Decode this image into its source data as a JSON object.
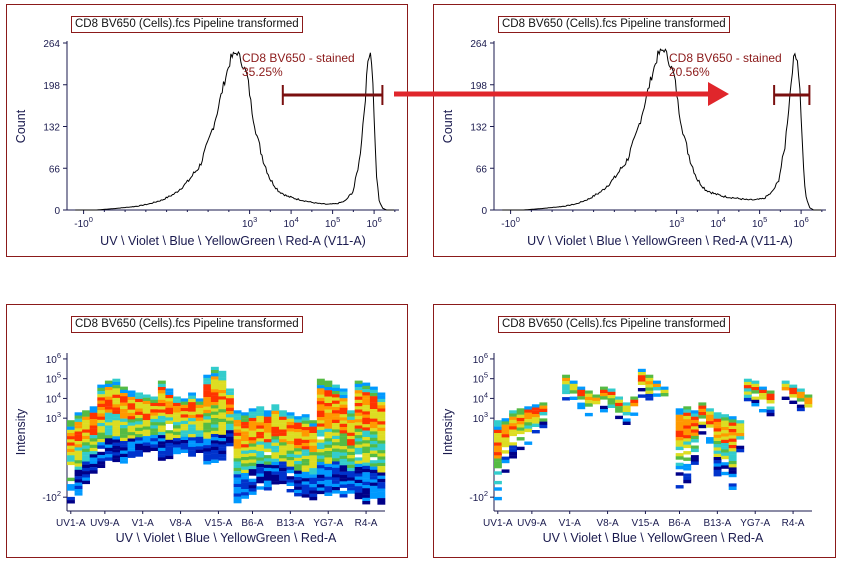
{
  "colors": {
    "frame": "#8b1a1a",
    "gate": "#7a0f0f",
    "arrow": "#e0262b",
    "axis_text": "#1a1a4e",
    "heat": [
      "#000088",
      "#0033cc",
      "#0099ff",
      "#33cccc",
      "#55bb44",
      "#dddd22",
      "#ff9900",
      "#ff3300"
    ]
  },
  "chart_data": [
    {
      "type": "histogram",
      "title": "CD8 BV650 (Cells).fcs Pipeline transformed",
      "xlabel": "UV \\ Violet \\ Blue \\ YellowGreen \\ Red-A (V11-A)",
      "ylabel": "Count",
      "yticks": [
        "0",
        "66",
        "132",
        "198",
        "264"
      ],
      "ylim": [
        0,
        264
      ],
      "xticks": [
        {
          "base": "-10",
          "exp": "0"
        },
        {
          "base": "10",
          "exp": "3"
        },
        {
          "base": "10",
          "exp": "4"
        },
        {
          "base": "10",
          "exp": "5"
        },
        {
          "base": "10",
          "exp": "6"
        }
      ],
      "gate": {
        "name": "CD8 BV650 - stained",
        "pct": "35.25%",
        "from": 3.8,
        "to": 6.2
      },
      "x": [
        -1.2,
        -0.7,
        -0.3,
        0.0,
        0.3,
        0.6,
        0.9,
        1.2,
        1.5,
        1.8,
        2.0,
        2.2,
        2.4,
        2.55,
        2.7,
        2.85,
        2.95,
        3.05,
        3.2,
        3.35,
        3.5,
        3.7,
        3.9,
        4.1,
        4.3,
        4.5,
        4.7,
        4.9,
        5.1,
        5.3,
        5.5,
        5.65,
        5.78,
        5.85,
        5.9,
        5.95,
        6.0,
        6.05,
        6.12,
        6.2,
        6.3,
        6.5
      ],
      "y": [
        0,
        0,
        2,
        4,
        6,
        10,
        16,
        26,
        44,
        70,
        105,
        150,
        205,
        240,
        250,
        228,
        210,
        160,
        110,
        75,
        48,
        30,
        22,
        18,
        15,
        12,
        10,
        9,
        10,
        14,
        30,
        80,
        170,
        235,
        255,
        230,
        150,
        60,
        15,
        3,
        0,
        0
      ]
    },
    {
      "type": "histogram",
      "title": "CD8 BV650 (Cells).fcs Pipeline transformed",
      "xlabel": "UV \\ Violet \\ Blue \\ YellowGreen \\ Red-A (V11-A)",
      "ylabel": "Count",
      "yticks": [
        "0",
        "66",
        "132",
        "198",
        "264"
      ],
      "ylim": [
        0,
        264
      ],
      "xticks": [
        {
          "base": "-10",
          "exp": "0"
        },
        {
          "base": "10",
          "exp": "3"
        },
        {
          "base": "10",
          "exp": "4"
        },
        {
          "base": "10",
          "exp": "5"
        },
        {
          "base": "10",
          "exp": "6"
        }
      ],
      "gate": {
        "name": "CD8 BV650 - stained",
        "pct": "20.56%",
        "from": 5.35,
        "to": 6.2
      },
      "x": [
        -1.2,
        -0.7,
        -0.3,
        0.0,
        0.3,
        0.6,
        0.9,
        1.2,
        1.5,
        1.8,
        2.0,
        2.2,
        2.4,
        2.55,
        2.7,
        2.85,
        2.95,
        3.05,
        3.2,
        3.35,
        3.5,
        3.7,
        3.9,
        4.1,
        4.3,
        4.5,
        4.7,
        4.9,
        5.1,
        5.3,
        5.45,
        5.6,
        5.72,
        5.8,
        5.86,
        5.92,
        5.98,
        6.04,
        6.1,
        6.2,
        6.3,
        6.5
      ],
      "y": [
        0,
        0,
        2,
        4,
        6,
        10,
        18,
        30,
        50,
        78,
        112,
        160,
        212,
        245,
        255,
        230,
        210,
        160,
        110,
        75,
        48,
        32,
        26,
        22,
        20,
        18,
        16,
        16,
        18,
        28,
        45,
        95,
        175,
        230,
        250,
        235,
        180,
        90,
        25,
        4,
        0,
        0
      ]
    },
    {
      "type": "heatmap",
      "title": "CD8 BV650 (Cells).fcs Pipeline transformed",
      "xlabel": "UV \\ Violet \\ Blue \\ YellowGreen \\ Red-A",
      "ylabel": "Intensity",
      "yticks": [
        {
          "base": "-10",
          "exp": "2"
        },
        {
          "base": "10",
          "exp": "3"
        },
        {
          "base": "10",
          "exp": "4"
        },
        {
          "base": "10",
          "exp": "5"
        },
        {
          "base": "10",
          "exp": "6"
        }
      ],
      "categories": [
        "UV1-A",
        "UV9-A",
        "V1-A",
        "V8-A",
        "V15-A",
        "B6-A",
        "B13-A",
        "YG7-A",
        "R4-A"
      ],
      "channels": [
        {
          "c": 0,
          "top": 2.9,
          "bot": -1.5,
          "dens": 0.25
        },
        {
          "c": 1,
          "top": 3.3,
          "bot": -0.8,
          "dens": 0.9
        },
        {
          "c": 2,
          "top": 3.4,
          "bot": -0.3,
          "dens": 0.9
        },
        {
          "c": 3,
          "top": 3.6,
          "bot": 0.2,
          "dens": 0.9
        },
        {
          "c": 4,
          "top": 4.7,
          "bot": 0.6,
          "dens": 0.9
        },
        {
          "c": 5,
          "top": 4.9,
          "bot": 0.9,
          "dens": 0.9
        },
        {
          "c": 6,
          "top": 5.0,
          "bot": 0.9,
          "dens": 0.9
        },
        {
          "c": 7,
          "top": 4.6,
          "bot": 0.8,
          "dens": 0.9
        },
        {
          "c": 8,
          "top": 4.4,
          "bot": 1.0,
          "dens": 0.9
        },
        {
          "c": 9,
          "top": 4.3,
          "bot": 1.2,
          "dens": 0.9
        },
        {
          "c": 10,
          "top": 4.2,
          "bot": 1.3,
          "dens": 0.9
        },
        {
          "c": 11,
          "top": 4.1,
          "bot": 1.4,
          "dens": 0.9
        },
        {
          "c": 12,
          "top": 4.9,
          "bot": 1.0,
          "dens": 0.9
        },
        {
          "c": 13,
          "top": 4.5,
          "bot": 1.0,
          "dens": 0.9
        },
        {
          "c": 14,
          "top": 4.1,
          "bot": 1.2,
          "dens": 0.9
        },
        {
          "c": 15,
          "top": 4.0,
          "bot": 1.4,
          "dens": 0.9
        },
        {
          "c": 16,
          "top": 4.3,
          "bot": 1.2,
          "dens": 0.9
        },
        {
          "c": 17,
          "top": 4.0,
          "bot": 1.4,
          "dens": 0.9
        },
        {
          "c": 18,
          "top": 5.2,
          "bot": 0.7,
          "dens": 0.9
        },
        {
          "c": 19,
          "top": 5.6,
          "bot": 0.8,
          "dens": 0.9
        },
        {
          "c": 20,
          "top": 5.4,
          "bot": 1.0,
          "dens": 0.9
        },
        {
          "c": 21,
          "top": 4.5,
          "bot": 1.6,
          "dens": 0.9
        },
        {
          "c": 22,
          "top": 3.4,
          "bot": -1.2,
          "dens": 0.9
        },
        {
          "c": 23,
          "top": 3.3,
          "bot": -1.0,
          "dens": 0.9
        },
        {
          "c": 24,
          "top": 3.5,
          "bot": -0.8,
          "dens": 0.9
        },
        {
          "c": 25,
          "top": 3.6,
          "bot": -0.5,
          "dens": 0.9
        },
        {
          "c": 26,
          "top": 3.4,
          "bot": -0.5,
          "dens": 0.9
        },
        {
          "c": 27,
          "top": 3.7,
          "bot": -0.3,
          "dens": 0.9
        },
        {
          "c": 28,
          "top": 3.4,
          "bot": -0.3,
          "dens": 0.9
        },
        {
          "c": 29,
          "top": 3.3,
          "bot": -0.6,
          "dens": 0.9
        },
        {
          "c": 30,
          "top": 3.1,
          "bot": -0.8,
          "dens": 0.9
        },
        {
          "c": 31,
          "top": 3.2,
          "bot": -0.9,
          "dens": 0.9
        },
        {
          "c": 32,
          "top": 2.9,
          "bot": -1.0,
          "dens": 0.9
        },
        {
          "c": 33,
          "top": 5.0,
          "bot": -0.8,
          "dens": 0.9
        },
        {
          "c": 34,
          "top": 4.9,
          "bot": -0.9,
          "dens": 0.9
        },
        {
          "c": 35,
          "top": 4.7,
          "bot": -0.8,
          "dens": 0.9
        },
        {
          "c": 36,
          "top": 4.5,
          "bot": -1.0,
          "dens": 0.9
        },
        {
          "c": 37,
          "top": 3.4,
          "bot": -0.8,
          "dens": 0.9
        },
        {
          "c": 38,
          "top": 4.9,
          "bot": -1.0,
          "dens": 0.9
        },
        {
          "c": 39,
          "top": 4.8,
          "bot": -1.2,
          "dens": 0.9
        },
        {
          "c": 40,
          "top": 4.6,
          "bot": -1.0,
          "dens": 0.9
        },
        {
          "c": 41,
          "top": 4.3,
          "bot": -1.3,
          "dens": 0.9
        }
      ]
    },
    {
      "type": "heatmap",
      "title": "CD8 BV650 (Cells).fcs Pipeline transformed",
      "xlabel": "UV \\ Violet \\ Blue \\ YellowGreen \\ Red-A",
      "ylabel": "Intensity",
      "yticks": [
        {
          "base": "-10",
          "exp": "2"
        },
        {
          "base": "10",
          "exp": "3"
        },
        {
          "base": "10",
          "exp": "4"
        },
        {
          "base": "10",
          "exp": "5"
        },
        {
          "base": "10",
          "exp": "6"
        }
      ],
      "categories": [
        "UV1-A",
        "UV9-A",
        "V1-A",
        "V8-A",
        "V15-A",
        "B6-A",
        "B13-A",
        "YG7-A",
        "R4-A"
      ],
      "channels": [
        {
          "c": 0,
          "top": 2.9,
          "bot": -1.6,
          "dens": 0.3
        },
        {
          "c": 1,
          "top": 3.0,
          "bot": 0.3,
          "dens": 0.5
        },
        {
          "c": 2,
          "top": 3.4,
          "bot": 1.0,
          "dens": 0.5
        },
        {
          "c": 3,
          "top": 3.5,
          "bot": 1.4,
          "dens": 0.5
        },
        {
          "c": 4,
          "top": 3.6,
          "bot": 1.8,
          "dens": 0.5
        },
        {
          "c": 5,
          "top": 3.7,
          "bot": 2.2,
          "dens": 0.5
        },
        {
          "c": 6,
          "top": 3.8,
          "bot": 2.6,
          "dens": 0.5
        },
        {
          "c": 9,
          "top": 5.2,
          "bot": 4.0,
          "dens": 0.5
        },
        {
          "c": 10,
          "top": 4.9,
          "bot": 3.8,
          "dens": 0.5
        },
        {
          "c": 11,
          "top": 4.6,
          "bot": 3.5,
          "dens": 0.5
        },
        {
          "c": 12,
          "top": 4.4,
          "bot": 3.2,
          "dens": 0.5
        },
        {
          "c": 13,
          "top": 4.2,
          "bot": 3.6,
          "dens": 0.5
        },
        {
          "c": 14,
          "top": 4.6,
          "bot": 3.4,
          "dens": 0.5
        },
        {
          "c": 15,
          "top": 4.5,
          "bot": 3.3,
          "dens": 0.5
        },
        {
          "c": 16,
          "top": 4.1,
          "bot": 3.0,
          "dens": 0.5
        },
        {
          "c": 17,
          "top": 3.8,
          "bot": 2.8,
          "dens": 0.5
        },
        {
          "c": 18,
          "top": 4.1,
          "bot": 3.2,
          "dens": 0.5
        },
        {
          "c": 19,
          "top": 5.5,
          "bot": 4.2,
          "dens": 0.5
        },
        {
          "c": 20,
          "top": 5.2,
          "bot": 4.0,
          "dens": 0.5
        },
        {
          "c": 21,
          "top": 4.9,
          "bot": 4.2,
          "dens": 0.5
        },
        {
          "c": 22,
          "top": 4.6,
          "bot": 3.8,
          "dens": 0.5
        },
        {
          "c": 24,
          "top": 3.5,
          "bot": -0.5,
          "dens": 0.6
        },
        {
          "c": 25,
          "top": 3.6,
          "bot": -0.2,
          "dens": 0.6
        },
        {
          "c": 26,
          "top": 3.4,
          "bot": 0.2,
          "dens": 0.6
        },
        {
          "c": 27,
          "top": 3.8,
          "bot": 2.2,
          "dens": 0.6
        },
        {
          "c": 28,
          "top": 3.5,
          "bot": 1.6,
          "dens": 0.6
        },
        {
          "c": 29,
          "top": 3.3,
          "bot": 0.2,
          "dens": 0.6
        },
        {
          "c": 30,
          "top": 3.2,
          "bot": -0.2,
          "dens": 0.6
        },
        {
          "c": 31,
          "top": 3.1,
          "bot": -0.6,
          "dens": 0.6
        },
        {
          "c": 32,
          "top": 2.9,
          "bot": 1.2,
          "dens": 0.6
        },
        {
          "c": 33,
          "top": 5.0,
          "bot": 3.8,
          "dens": 0.5
        },
        {
          "c": 34,
          "top": 4.9,
          "bot": 3.7,
          "dens": 0.5
        },
        {
          "c": 35,
          "top": 4.6,
          "bot": 3.4,
          "dens": 0.5
        },
        {
          "c": 36,
          "top": 4.4,
          "bot": 3.2,
          "dens": 0.5
        },
        {
          "c": 38,
          "top": 4.9,
          "bot": 4.0,
          "dens": 0.5
        },
        {
          "c": 39,
          "top": 4.7,
          "bot": 3.8,
          "dens": 0.5
        },
        {
          "c": 40,
          "top": 4.5,
          "bot": 3.5,
          "dens": 0.5
        },
        {
          "c": 41,
          "top": 4.2,
          "bot": 3.3,
          "dens": 0.5
        }
      ]
    }
  ]
}
